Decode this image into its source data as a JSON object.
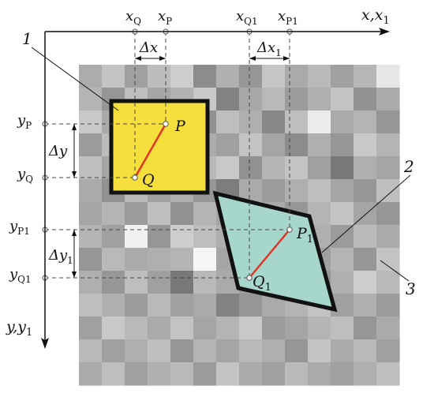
{
  "colors": {
    "background": "#ffffff",
    "grid_dark": "#6f6f6f",
    "grid_light": "#f2f2f2",
    "square_fill": "#f4df3d",
    "rhombus_fill": "#a7d6cd",
    "segment": "#e03424",
    "outline": "#111111",
    "guide": "#444444"
  },
  "texture": {
    "rows": 14,
    "cols": 14,
    "shades": [
      [
        172,
        195,
        160,
        188,
        205,
        140,
        176,
        150,
        198,
        170,
        185,
        160,
        182,
        230
      ],
      [
        180,
        150,
        190,
        165,
        178,
        200,
        130,
        168,
        185,
        155,
        175,
        195,
        145,
        170
      ],
      [
        200,
        170,
        140,
        185,
        160,
        145,
        190,
        175,
        135,
        190,
        235,
        170,
        180,
        150
      ],
      [
        155,
        188,
        175,
        150,
        195,
        172,
        160,
        195,
        165,
        140,
        175,
        150,
        200,
        180
      ],
      [
        190,
        165,
        150,
        180,
        140,
        185,
        200,
        145,
        180,
        195,
        160,
        120,
        175,
        165
      ],
      [
        170,
        145,
        185,
        160,
        175,
        150,
        125,
        170,
        155,
        175,
        190,
        165,
        150,
        190
      ],
      [
        165,
        180,
        155,
        190,
        145,
        180,
        165,
        205,
        170,
        150,
        180,
        195,
        165,
        150
      ],
      [
        180,
        160,
        240,
        150,
        205,
        190,
        175,
        150,
        140,
        165,
        175,
        155,
        185,
        170
      ],
      [
        150,
        185,
        170,
        175,
        180,
        245,
        165,
        185,
        200,
        170,
        160,
        180,
        150,
        195
      ],
      [
        175,
        150,
        190,
        160,
        120,
        185,
        170,
        155,
        180,
        190,
        150,
        175,
        205,
        185
      ],
      [
        190,
        175,
        155,
        185,
        160,
        170,
        130,
        150,
        170,
        180,
        195,
        160,
        175,
        155
      ],
      [
        160,
        200,
        185,
        170,
        195,
        165,
        180,
        200,
        155,
        165,
        180,
        190,
        150,
        170
      ],
      [
        185,
        160,
        175,
        190,
        150,
        180,
        165,
        185,
        175,
        150,
        195,
        170,
        185,
        160
      ],
      [
        170,
        190,
        160,
        175,
        185,
        155,
        195,
        170,
        160,
        185,
        170,
        160,
        175,
        190
      ]
    ]
  },
  "axes": {
    "x_label": "x,x",
    "x_label_sub": "1",
    "y_label": "y,y",
    "y_label_sub": "1"
  },
  "ticks": {
    "xQ": {
      "base": "x",
      "sub": "Q"
    },
    "xP": {
      "base": "x",
      "sub": "P"
    },
    "xQ1": {
      "base": "x",
      "sub": "Q1"
    },
    "xP1": {
      "base": "x",
      "sub": "P1"
    },
    "yP": {
      "base": "y",
      "sub": "P"
    },
    "yQ": {
      "base": "y",
      "sub": "Q"
    },
    "yP1": {
      "base": "y",
      "sub": "P1"
    },
    "yQ1": {
      "base": "y",
      "sub": "Q1"
    }
  },
  "deltas": {
    "dx": {
      "base": "Δx",
      "sub": ""
    },
    "dx1": {
      "base": "Δx",
      "sub": "1"
    },
    "dy": {
      "base": "Δy",
      "sub": ""
    },
    "dy1": {
      "base": "Δy",
      "sub": "1"
    }
  },
  "points": {
    "P": {
      "base": "P",
      "sub": ""
    },
    "Q": {
      "base": "Q",
      "sub": ""
    },
    "P1": {
      "base": "P",
      "sub": "1"
    },
    "Q1": {
      "base": "Q",
      "sub": "1"
    }
  },
  "callouts": {
    "one": "1",
    "two": "2",
    "three": "3"
  }
}
